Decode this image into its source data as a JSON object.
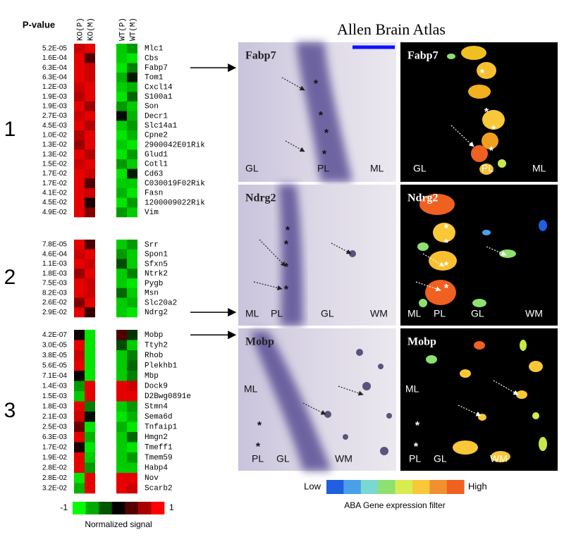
{
  "pvalue_header": "P-value",
  "columns": [
    "KO(P)",
    "KO(M)",
    "WT(P)",
    "WT(M)"
  ],
  "groups": [
    {
      "label": "1",
      "genes": [
        {
          "name": "Mlc1",
          "p": "5.2E-05",
          "signal": [
            0.8,
            0.9,
            -0.8,
            -0.6
          ]
        },
        {
          "name": "Cbs",
          "p": "1.6E-04",
          "signal": [
            0.9,
            0.3,
            -0.8,
            -0.9
          ]
        },
        {
          "name": "Fabp7",
          "p": "6.3E-04",
          "signal": [
            0.9,
            0.8,
            -0.9,
            -0.5
          ]
        },
        {
          "name": "Tom1",
          "p": "6.3E-04",
          "signal": [
            0.9,
            0.8,
            -0.7,
            -0.1
          ]
        },
        {
          "name": "Cxcl14",
          "p": "1.2E-03",
          "signal": [
            0.8,
            0.9,
            -0.8,
            -0.7
          ]
        },
        {
          "name": "S100a1",
          "p": "1.9E-03",
          "signal": [
            0.7,
            0.9,
            -0.9,
            -0.4
          ]
        },
        {
          "name": "Son",
          "p": "1.9E-03",
          "signal": [
            0.9,
            0.6,
            -0.6,
            -0.8
          ]
        },
        {
          "name": "Decr1",
          "p": "2.7E-03",
          "signal": [
            0.8,
            0.9,
            -0.05,
            -0.7
          ]
        },
        {
          "name": "Slc14a1",
          "p": "4.5E-03",
          "signal": [
            0.9,
            0.7,
            -0.8,
            -0.6
          ]
        },
        {
          "name": "Cpne2",
          "p": "1.0E-02",
          "signal": [
            0.7,
            0.9,
            -0.9,
            -0.7
          ]
        },
        {
          "name": "2900042E01Rik",
          "p": "1.3E-02",
          "signal": [
            0.6,
            0.9,
            -0.8,
            -0.9
          ]
        },
        {
          "name": "Glud1",
          "p": "1.3E-02",
          "signal": [
            0.9,
            0.7,
            -0.9,
            -0.6
          ]
        },
        {
          "name": "Cotl1",
          "p": "1.5E-02",
          "signal": [
            0.8,
            0.9,
            -0.6,
            -0.8
          ]
        },
        {
          "name": "Cd63",
          "p": "1.7E-02",
          "signal": [
            0.9,
            0.8,
            -0.9,
            -0.1
          ]
        },
        {
          "name": "C030019F02Rik",
          "p": "1.7E-02",
          "signal": [
            0.9,
            0.3,
            -0.8,
            -0.8
          ]
        },
        {
          "name": "Fasn",
          "p": "4.1E-02",
          "signal": [
            0.9,
            0.8,
            -0.7,
            -0.9
          ]
        },
        {
          "name": "1200009022Rik",
          "p": "4.5E-02",
          "signal": [
            0.9,
            0.1,
            -0.9,
            -0.6
          ]
        },
        {
          "name": "Vim",
          "p": "4.9E-02",
          "signal": [
            0.9,
            0.5,
            -0.6,
            -0.8
          ]
        }
      ]
    },
    {
      "label": "2",
      "genes": [
        {
          "name": "Srr",
          "p": "7.8E-05",
          "signal": [
            0.9,
            0.3,
            -0.8,
            -0.6
          ]
        },
        {
          "name": "Spon1",
          "p": "4.6E-04",
          "signal": [
            0.8,
            0.9,
            -0.6,
            -0.8
          ]
        },
        {
          "name": "Sfxn5",
          "p": "1.1E-03",
          "signal": [
            0.9,
            0.8,
            -0.3,
            -0.8
          ]
        },
        {
          "name": "Ntrk2",
          "p": "1.8E-03",
          "signal": [
            0.6,
            0.9,
            -0.8,
            -0.5
          ]
        },
        {
          "name": "Pygb",
          "p": "7.5E-03",
          "signal": [
            0.9,
            0.8,
            -0.8,
            -0.9
          ]
        },
        {
          "name": "Msn",
          "p": "8.2E-03",
          "signal": [
            0.9,
            0.8,
            -0.4,
            -0.8
          ]
        },
        {
          "name": "Slc20a2",
          "p": "2.6E-02",
          "signal": [
            0.5,
            0.9,
            -0.8,
            -0.7
          ]
        },
        {
          "name": "Ndrg2",
          "p": "2.9E-02",
          "signal": [
            0.9,
            0.2,
            -0.8,
            -0.9
          ]
        }
      ]
    },
    {
      "label": "3",
      "genes": [
        {
          "name": "Mobp",
          "p": "4.2E-07",
          "signal": [
            0.05,
            -0.9,
            0.3,
            -0.2
          ]
        },
        {
          "name": "Ttyh2",
          "p": "3.0E-05",
          "signal": [
            0.9,
            -0.9,
            -0.3,
            -0.8
          ]
        },
        {
          "name": "Rhob",
          "p": "3.8E-05",
          "signal": [
            0.8,
            -0.9,
            -0.8,
            -0.5
          ]
        },
        {
          "name": "Plekhb1",
          "p": "5.6E-05",
          "signal": [
            0.9,
            -0.9,
            -0.8,
            -0.4
          ]
        },
        {
          "name": "Mbp",
          "p": "7.1E-04",
          "signal": [
            0.05,
            -0.9,
            -0.8,
            -0.5
          ]
        },
        {
          "name": "Dock9",
          "p": "1.4E-03",
          "signal": [
            -0.6,
            0.9,
            0.9,
            0.8
          ]
        },
        {
          "name": "D2Bwg0891e",
          "p": "1.5E-03",
          "signal": [
            -0.8,
            0.9,
            0.9,
            0.9
          ]
        },
        {
          "name": "Stmn4",
          "p": "1.8E-03",
          "signal": [
            0.9,
            -0.5,
            -0.8,
            -0.6
          ]
        },
        {
          "name": "Sema6d",
          "p": "2.1E-03",
          "signal": [
            0.8,
            -0.05,
            -0.9,
            -0.7
          ]
        },
        {
          "name": "Tnfaip1",
          "p": "2.5E-03",
          "signal": [
            0.4,
            -0.9,
            -0.7,
            -0.9
          ]
        },
        {
          "name": "Hmgn2",
          "p": "6.3E-03",
          "signal": [
            0.9,
            -0.7,
            -0.8,
            -0.4
          ]
        },
        {
          "name": "Tmeff1",
          "p": "1.7E-02",
          "signal": [
            0.1,
            -0.9,
            -0.8,
            -0.9
          ]
        },
        {
          "name": "Tmem59",
          "p": "1.9E-02",
          "signal": [
            0.9,
            -0.8,
            -0.8,
            -0.6
          ]
        },
        {
          "name": "Habp4",
          "p": "2.8E-02",
          "signal": [
            0.9,
            -0.6,
            -0.8,
            -0.8
          ]
        },
        {
          "name": "Nov",
          "p": "2.8E-02",
          "signal": [
            -0.9,
            0.9,
            0.9,
            0.9
          ]
        },
        {
          "name": "Scarb2",
          "p": "3.2E-02",
          "signal": [
            -0.7,
            0.9,
            0.9,
            0.8
          ]
        }
      ]
    }
  ],
  "signal_scale": {
    "min": -1,
    "max": 1,
    "title": "Normalized signal"
  },
  "atlas": {
    "title": "Allen Brain Atlas",
    "asterisk": "*",
    "panels": [
      {
        "gene": "Fabp7",
        "ish_labels": [
          "GL",
          "PL",
          "ML"
        ],
        "filter_labels": [
          "GL",
          "PL",
          "ML"
        ]
      },
      {
        "gene": "Ndrg2",
        "ish_labels": [
          "ML",
          "PL",
          "GL",
          "WM"
        ],
        "filter_labels": [
          "ML",
          "PL",
          "GL",
          "WM"
        ]
      },
      {
        "gene": "Mobp",
        "ish_labels": [
          "ML",
          "PL",
          "GL",
          "WM"
        ],
        "filter_labels": [
          "ML",
          "PL",
          "GL",
          "WM"
        ]
      }
    ]
  },
  "filter_legend": {
    "low": "Low",
    "high": "High",
    "title": "ABA Gene expression filter"
  }
}
